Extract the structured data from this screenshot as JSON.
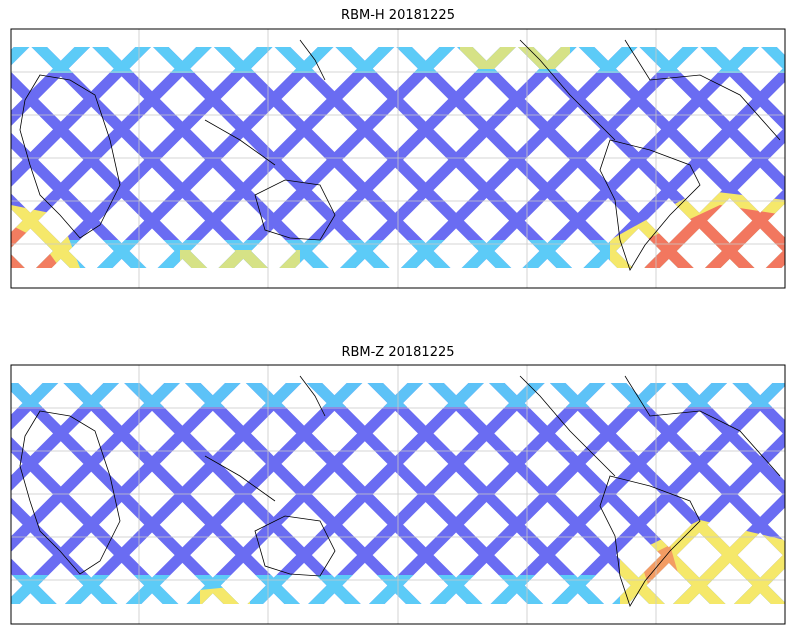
{
  "panels": [
    {
      "title": "RBM-H 20181225"
    },
    {
      "title": "RBM-Z 20181225"
    }
  ]
}
